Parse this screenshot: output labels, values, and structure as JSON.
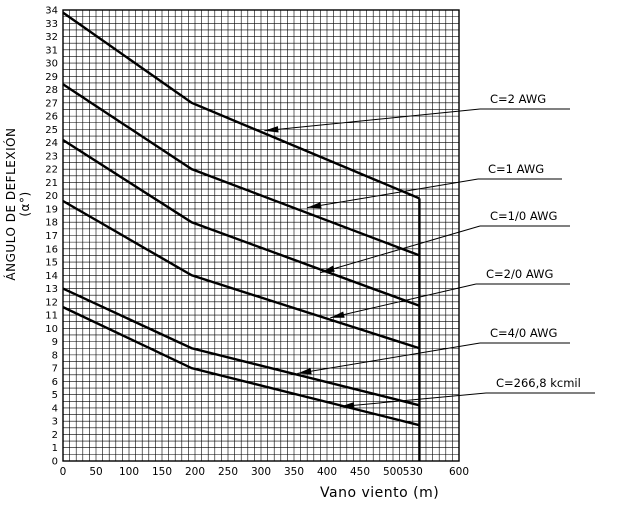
{
  "chart_data": {
    "type": "line",
    "xlabel": "Vano viento (m)",
    "ylabel": "ÁNGULO DE DEFLEXIÓN (α°)",
    "xlim": [
      0,
      600
    ],
    "ylim": [
      0,
      34
    ],
    "x_ticks": [
      "0",
      "50",
      "100",
      "150",
      "200",
      "250",
      "300",
      "350",
      "400",
      "450",
      "500",
      "530",
      "600"
    ],
    "y_ticks": [
      "0",
      "1",
      "2",
      "3",
      "4",
      "5",
      "6",
      "7",
      "8",
      "9",
      "10",
      "11",
      "12",
      "13",
      "14",
      "15",
      "16",
      "17",
      "18",
      "19",
      "20",
      "21",
      "22",
      "23",
      "24",
      "25",
      "26",
      "27",
      "28",
      "29",
      "30",
      "31",
      "32",
      "33",
      "34"
    ],
    "grid": true,
    "limit_line_x": 540,
    "series": [
      {
        "name": "C=2 AWG",
        "x": [
          0,
          195,
          540
        ],
        "y": [
          33.8,
          27.0,
          19.8
        ]
      },
      {
        "name": "C=1 AWG",
        "x": [
          0,
          195,
          540
        ],
        "y": [
          28.4,
          22.0,
          15.5
        ]
      },
      {
        "name": "C=1/0 AWG",
        "x": [
          0,
          195,
          540
        ],
        "y": [
          24.2,
          18.0,
          11.7
        ]
      },
      {
        "name": "C=2/0 AWG",
        "x": [
          0,
          195,
          540
        ],
        "y": [
          19.6,
          14.0,
          8.5
        ]
      },
      {
        "name": "C=4/0 AWG",
        "x": [
          0,
          195,
          540
        ],
        "y": [
          13.0,
          8.5,
          4.2
        ]
      },
      {
        "name": "C=266,8 kcmil",
        "x": [
          0,
          195,
          540
        ],
        "y": [
          11.6,
          7.0,
          2.7
        ]
      }
    ],
    "annotations": [
      {
        "series": "C=2 AWG",
        "text": "C=2 AWG",
        "arrow_to": [
          305,
          24.9
        ]
      },
      {
        "series": "C=1 AWG",
        "text": "C=1 AWG",
        "arrow_to": [
          370,
          19.1
        ]
      },
      {
        "series": "C=1/0 AWG",
        "text": "C=1/0 AWG",
        "arrow_to": [
          390,
          14.2
        ]
      },
      {
        "series": "C=2/0 AWG",
        "text": "C=2/0 AWG",
        "arrow_to": [
          405,
          10.8
        ]
      },
      {
        "series": "C=4/0 AWG",
        "text": "C=4/0 AWG",
        "arrow_to": [
          355,
          6.6
        ]
      },
      {
        "series": "C=266,8 kcmil",
        "text": "C=266,8 kcmil",
        "arrow_to": [
          420,
          4.1
        ]
      }
    ]
  }
}
